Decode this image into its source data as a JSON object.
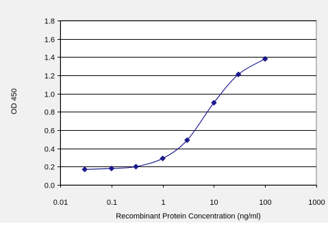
{
  "chart_data": {
    "type": "scatter",
    "xlabel": "Recombinant Protein Concentration (ng/ml)",
    "ylabel": "OD 450",
    "xscale": "log",
    "xlim": [
      0.01,
      1000
    ],
    "ylim": [
      0.0,
      1.8
    ],
    "xticks": [
      "0.01",
      "0.1",
      "1",
      "10",
      "100",
      "1000"
    ],
    "xtick_values": [
      0.01,
      0.1,
      1,
      10,
      100,
      1000
    ],
    "yticks": [
      "0.0",
      "0.2",
      "0.4",
      "0.6",
      "0.8",
      "1.0",
      "1.2",
      "1.4",
      "1.6",
      "1.8"
    ],
    "ytick_values": [
      0.0,
      0.2,
      0.4,
      0.6,
      0.8,
      1.0,
      1.2,
      1.4,
      1.6,
      1.8
    ],
    "grid": "horizontal",
    "series": [
      {
        "marker": "diamond",
        "color": "#1a1a8c",
        "x": [
          0.03,
          0.1,
          0.3,
          1,
          3,
          10,
          30,
          100
        ],
        "y": [
          0.17,
          0.18,
          0.2,
          0.29,
          0.49,
          0.9,
          1.21,
          1.38
        ]
      }
    ],
    "colors": {
      "outer_background": "#f1f1f1",
      "plot_background": "#ffffff",
      "gridline": "#000000",
      "curve": "#1a1a8c"
    }
  }
}
